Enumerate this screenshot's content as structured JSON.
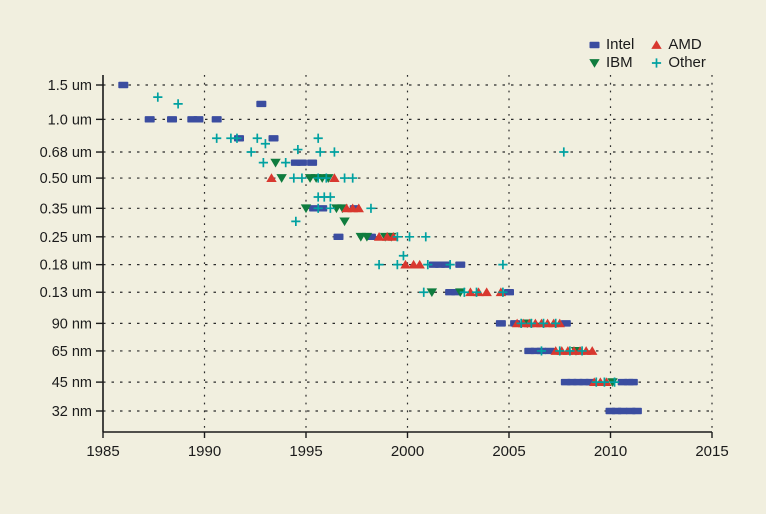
{
  "colors": {
    "background": "#f1efdf",
    "text": "#1b1b1b",
    "axis": "#1a1a1a",
    "grid": "#2b2b2b",
    "intel": "#3b4da0",
    "amd": "#d8382f",
    "ibm": "#0f7c3e",
    "other": "#00a1a1"
  },
  "chart_data": {
    "type": "scatter",
    "title": "",
    "xlabel": "",
    "ylabel": "",
    "x_axis": {
      "range": [
        1985,
        2015
      ],
      "ticks": [
        1985,
        1990,
        1995,
        2000,
        2005,
        2010,
        2015
      ],
      "grid": true
    },
    "y_axis": {
      "scale": "log",
      "unit": "feature size",
      "tick_labels": [
        "1.5 um",
        "1.0 um",
        "0.68 um",
        "0.50 um",
        "0.35 um",
        "0.25 um",
        "0.18 um",
        "0.13 um",
        "90 nm",
        "65 nm",
        "45 nm",
        "32 nm"
      ],
      "tick_values_um": [
        1.5,
        1.0,
        0.68,
        0.5,
        0.35,
        0.25,
        0.18,
        0.13,
        0.09,
        0.065,
        0.045,
        0.032
      ],
      "grid": true
    },
    "legend": {
      "position": "top-right",
      "order": [
        "Intel",
        "AMD",
        "IBM",
        "Other"
      ]
    },
    "point_format": "[year, feature_size_um]",
    "series": [
      {
        "name": "Intel",
        "marker": "square",
        "color": "#3b4da0",
        "points": [
          [
            1986.0,
            1.5
          ],
          [
            1992.8,
            1.2
          ],
          [
            1987.3,
            1.0
          ],
          [
            1988.4,
            1.0
          ],
          [
            1989.4,
            1.0
          ],
          [
            1989.7,
            1.0
          ],
          [
            1990.6,
            1.0
          ],
          [
            1991.7,
            0.8
          ],
          [
            1993.4,
            0.8
          ],
          [
            1994.5,
            0.6
          ],
          [
            1994.8,
            0.6
          ],
          [
            1995.3,
            0.6
          ],
          [
            1995.4,
            0.35
          ],
          [
            1995.8,
            0.35
          ],
          [
            1997.4,
            0.35
          ],
          [
            1996.6,
            0.25
          ],
          [
            1998.2,
            0.25
          ],
          [
            2001.3,
            0.18
          ],
          [
            2001.6,
            0.18
          ],
          [
            2001.9,
            0.18
          ],
          [
            2002.6,
            0.18
          ],
          [
            2002.1,
            0.13
          ],
          [
            2002.4,
            0.13
          ],
          [
            2005.0,
            0.13
          ],
          [
            2004.6,
            0.09
          ],
          [
            2005.3,
            0.09
          ],
          [
            2007.8,
            0.09
          ],
          [
            2006.0,
            0.065
          ],
          [
            2006.3,
            0.065
          ],
          [
            2006.6,
            0.065
          ],
          [
            2007.0,
            0.065
          ],
          [
            2007.8,
            0.045
          ],
          [
            2008.1,
            0.045
          ],
          [
            2008.4,
            0.045
          ],
          [
            2008.7,
            0.045
          ],
          [
            2009.0,
            0.045
          ],
          [
            2010.6,
            0.045
          ],
          [
            2010.9,
            0.045
          ],
          [
            2011.1,
            0.045
          ],
          [
            2010.0,
            0.032
          ],
          [
            2010.3,
            0.032
          ],
          [
            2010.6,
            0.032
          ],
          [
            2011.0,
            0.032
          ],
          [
            2011.3,
            0.032
          ]
        ]
      },
      {
        "name": "IBM",
        "marker": "triangle-down",
        "color": "#0f7c3e",
        "points": [
          [
            1993.5,
            0.6
          ],
          [
            1993.8,
            0.5
          ],
          [
            1995.2,
            0.5
          ],
          [
            1995.5,
            0.5
          ],
          [
            1995.8,
            0.5
          ],
          [
            1996.1,
            0.5
          ],
          [
            1995.0,
            0.35
          ],
          [
            1996.5,
            0.35
          ],
          [
            1996.8,
            0.35
          ],
          [
            1996.9,
            0.3
          ],
          [
            1997.7,
            0.25
          ],
          [
            1998.0,
            0.25
          ],
          [
            1998.9,
            0.25
          ],
          [
            1999.2,
            0.25
          ],
          [
            2001.2,
            0.13
          ],
          [
            2002.6,
            0.13
          ],
          [
            2005.9,
            0.09
          ],
          [
            2008.3,
            0.065
          ],
          [
            2010.1,
            0.045
          ]
        ]
      },
      {
        "name": "AMD",
        "marker": "triangle-up",
        "color": "#d8382f",
        "points": [
          [
            1993.3,
            0.5
          ],
          [
            1996.4,
            0.5
          ],
          [
            1997.0,
            0.35
          ],
          [
            1997.3,
            0.35
          ],
          [
            1997.6,
            0.35
          ],
          [
            1998.6,
            0.25
          ],
          [
            1999.0,
            0.25
          ],
          [
            1999.3,
            0.25
          ],
          [
            1999.9,
            0.18
          ],
          [
            2000.3,
            0.18
          ],
          [
            2000.6,
            0.18
          ],
          [
            2003.1,
            0.13
          ],
          [
            2003.5,
            0.13
          ],
          [
            2003.9,
            0.13
          ],
          [
            2004.6,
            0.13
          ],
          [
            2005.4,
            0.09
          ],
          [
            2005.7,
            0.09
          ],
          [
            2006.0,
            0.09
          ],
          [
            2006.3,
            0.09
          ],
          [
            2006.6,
            0.09
          ],
          [
            2006.9,
            0.09
          ],
          [
            2007.2,
            0.09
          ],
          [
            2007.5,
            0.09
          ],
          [
            2007.3,
            0.065
          ],
          [
            2007.6,
            0.065
          ],
          [
            2007.9,
            0.065
          ],
          [
            2008.2,
            0.065
          ],
          [
            2008.5,
            0.065
          ],
          [
            2008.8,
            0.065
          ],
          [
            2009.1,
            0.065
          ],
          [
            2009.2,
            0.045
          ],
          [
            2009.5,
            0.045
          ],
          [
            2009.8,
            0.045
          ]
        ]
      },
      {
        "name": "Other",
        "marker": "plus",
        "color": "#00a1a1",
        "points": [
          [
            1987.7,
            1.3
          ],
          [
            1988.7,
            1.2
          ],
          [
            1990.6,
            0.8
          ],
          [
            1991.3,
            0.8
          ],
          [
            1991.6,
            0.8
          ],
          [
            1992.6,
            0.8
          ],
          [
            1995.6,
            0.8
          ],
          [
            1993.0,
            0.75
          ],
          [
            1994.6,
            0.7
          ],
          [
            1992.3,
            0.68
          ],
          [
            1995.7,
            0.68
          ],
          [
            1996.4,
            0.68
          ],
          [
            2007.7,
            0.68
          ],
          [
            1992.9,
            0.6
          ],
          [
            1994.0,
            0.6
          ],
          [
            1994.4,
            0.5
          ],
          [
            1994.8,
            0.5
          ],
          [
            1995.6,
            0.5
          ],
          [
            1996.0,
            0.5
          ],
          [
            1996.9,
            0.5
          ],
          [
            1997.3,
            0.5
          ],
          [
            1995.6,
            0.4
          ],
          [
            1995.9,
            0.4
          ],
          [
            1996.2,
            0.4
          ],
          [
            1994.5,
            0.3
          ],
          [
            1995.6,
            0.35
          ],
          [
            1996.2,
            0.35
          ],
          [
            1998.2,
            0.35
          ],
          [
            1999.5,
            0.25
          ],
          [
            2000.1,
            0.25
          ],
          [
            2000.9,
            0.25
          ],
          [
            1999.8,
            0.2
          ],
          [
            1998.6,
            0.18
          ],
          [
            1999.5,
            0.18
          ],
          [
            2001.0,
            0.18
          ],
          [
            2002.1,
            0.18
          ],
          [
            2004.7,
            0.18
          ],
          [
            2000.8,
            0.13
          ],
          [
            2002.8,
            0.13
          ],
          [
            2003.4,
            0.13
          ],
          [
            2004.7,
            0.13
          ],
          [
            2005.6,
            0.09
          ],
          [
            2006.1,
            0.09
          ],
          [
            2006.7,
            0.09
          ],
          [
            2007.3,
            0.09
          ],
          [
            2006.6,
            0.065
          ],
          [
            2007.5,
            0.065
          ],
          [
            2008.0,
            0.065
          ],
          [
            2008.6,
            0.065
          ],
          [
            2009.3,
            0.045
          ],
          [
            2009.7,
            0.045
          ],
          [
            2010.2,
            0.045
          ]
        ]
      }
    ]
  }
}
